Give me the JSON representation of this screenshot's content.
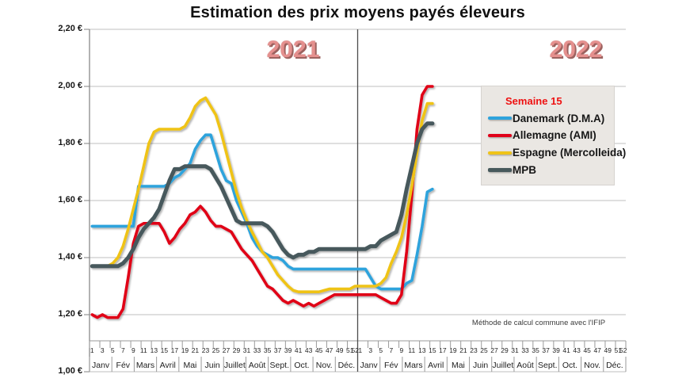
{
  "title": "Estimation des prix moyens payés éleveurs",
  "annotations": {
    "year_left": "2021",
    "year_right": "2022",
    "method_note": "Méthode de calcul commune avec l'IFIP"
  },
  "legend": {
    "header": "Semaine 15",
    "position": "right-top-inside"
  },
  "chart_data": {
    "type": "line",
    "title": "Estimation des prix moyens payés éleveurs",
    "x_unit": "semaine (week) 1-52 of 2021 then 1-15 of 2022",
    "years": [
      "2021",
      "2022"
    ],
    "weeks_per_year": 52,
    "last_week_plotted_2022": 15,
    "ylabel": "",
    "ylim": [
      1.0,
      2.2
    ],
    "grid": "horizontal",
    "y_ticks": [
      "2,20 €",
      "2,00 €",
      "1,80 €",
      "1,60 €",
      "1,40 €",
      "1,20 €",
      "1,00 €"
    ],
    "y_tick_values": [
      2.2,
      2.0,
      1.8,
      1.6,
      1.4,
      1.2,
      1.0
    ],
    "week_tick_labels": [
      1,
      3,
      5,
      7,
      9,
      11,
      13,
      15,
      17,
      19,
      21,
      23,
      25,
      27,
      29,
      31,
      33,
      35,
      37,
      39,
      41,
      43,
      45,
      47,
      49,
      51,
      52
    ],
    "month_labels": [
      "Janv",
      "Fév",
      "Mars",
      "Avril",
      "Mai",
      "Juin",
      "Juillet",
      "Août",
      "Sept.",
      "Oct.",
      "Nov.",
      "Déc."
    ],
    "series": [
      {
        "name": "Danemark (D.M.A)",
        "color": "#2ea3dc",
        "values_2021": [
          1.51,
          1.51,
          1.51,
          1.51,
          1.51,
          1.51,
          1.51,
          1.51,
          1.51,
          1.65,
          1.65,
          1.65,
          1.65,
          1.65,
          1.65,
          1.66,
          1.68,
          1.69,
          1.71,
          1.73,
          1.78,
          1.81,
          1.83,
          1.83,
          1.77,
          1.71,
          1.67,
          1.66,
          1.6,
          1.56,
          1.52,
          1.47,
          1.44,
          1.42,
          1.41,
          1.4,
          1.4,
          1.39,
          1.37,
          1.36,
          1.36,
          1.36,
          1.36,
          1.36,
          1.36,
          1.36,
          1.36,
          1.36,
          1.36,
          1.36,
          1.36,
          1.36
        ],
        "values_2022": [
          1.36,
          1.36,
          1.33,
          1.3,
          1.29,
          1.29,
          1.29,
          1.29,
          1.29,
          1.31,
          1.32,
          1.41,
          1.51,
          1.63,
          1.64
        ]
      },
      {
        "name": "Allemagne (AMI)",
        "color": "#e00019",
        "values_2021": [
          1.2,
          1.19,
          1.2,
          1.19,
          1.19,
          1.19,
          1.22,
          1.33,
          1.45,
          1.51,
          1.52,
          1.52,
          1.52,
          1.52,
          1.49,
          1.45,
          1.47,
          1.5,
          1.52,
          1.55,
          1.56,
          1.58,
          1.56,
          1.53,
          1.51,
          1.51,
          1.5,
          1.49,
          1.46,
          1.43,
          1.41,
          1.39,
          1.36,
          1.33,
          1.3,
          1.29,
          1.27,
          1.25,
          1.24,
          1.25,
          1.24,
          1.23,
          1.24,
          1.23,
          1.24,
          1.25,
          1.26,
          1.27,
          1.27,
          1.27,
          1.27,
          1.27
        ],
        "values_2022": [
          1.27,
          1.27,
          1.27,
          1.27,
          1.26,
          1.25,
          1.24,
          1.24,
          1.27,
          1.42,
          1.62,
          1.85,
          1.97,
          2.0,
          2.0
        ]
      },
      {
        "name": "Espagne (Mercolleida)",
        "color": "#efc319",
        "values_2021": [
          1.37,
          1.37,
          1.37,
          1.37,
          1.38,
          1.4,
          1.44,
          1.5,
          1.57,
          1.64,
          1.72,
          1.8,
          1.84,
          1.85,
          1.85,
          1.85,
          1.85,
          1.85,
          1.86,
          1.89,
          1.93,
          1.95,
          1.96,
          1.93,
          1.9,
          1.84,
          1.77,
          1.7,
          1.63,
          1.575,
          1.53,
          1.49,
          1.455,
          1.42,
          1.4,
          1.37,
          1.34,
          1.32,
          1.3,
          1.285,
          1.28,
          1.28,
          1.28,
          1.28,
          1.28,
          1.285,
          1.29,
          1.29,
          1.29,
          1.29,
          1.29,
          1.3
        ],
        "values_2022": [
          1.3,
          1.3,
          1.3,
          1.3,
          1.31,
          1.33,
          1.38,
          1.42,
          1.47,
          1.55,
          1.65,
          1.77,
          1.88,
          1.94,
          1.94
        ]
      },
      {
        "name": "MPB",
        "color": "#47595c",
        "values_2021": [
          1.37,
          1.37,
          1.37,
          1.37,
          1.37,
          1.37,
          1.38,
          1.4,
          1.43,
          1.47,
          1.5,
          1.52,
          1.54,
          1.57,
          1.62,
          1.67,
          1.71,
          1.71,
          1.72,
          1.72,
          1.72,
          1.72,
          1.72,
          1.71,
          1.68,
          1.65,
          1.61,
          1.57,
          1.53,
          1.52,
          1.52,
          1.52,
          1.52,
          1.52,
          1.51,
          1.49,
          1.46,
          1.43,
          1.41,
          1.4,
          1.41,
          1.41,
          1.42,
          1.42,
          1.43,
          1.43,
          1.43,
          1.43,
          1.43,
          1.43,
          1.43,
          1.43
        ],
        "values_2022": [
          1.43,
          1.43,
          1.44,
          1.44,
          1.46,
          1.47,
          1.48,
          1.49,
          1.55,
          1.64,
          1.72,
          1.8,
          1.85,
          1.87,
          1.87
        ]
      }
    ],
    "colors": {
      "gridline": "#bfbfbf",
      "axis": "#808080",
      "label_band": "#9a9a9a",
      "year_separator": "#4d4d4d",
      "year_label": "#e5908e",
      "legend_background": "#eae7e3",
      "legend_header": "#ee1111"
    }
  }
}
